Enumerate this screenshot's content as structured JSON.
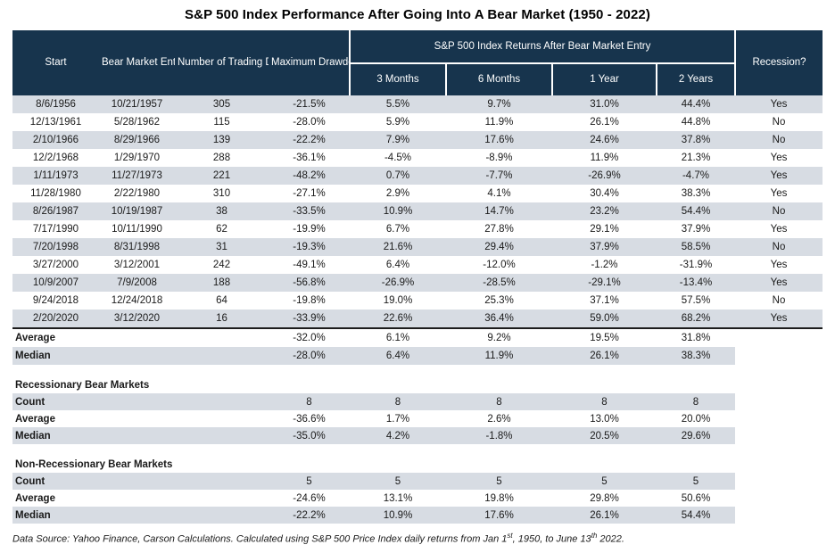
{
  "title": "S&P 500 Index Performance After Going Into A Bear Market (1950 - 2022)",
  "colors": {
    "header_bg": "#17344d",
    "header_text": "#ffffff",
    "row_shade": "#d7dce3",
    "body_text": "#1a1a1a"
  },
  "chart_data": {
    "type": "table",
    "title": "S&P 500 Index Performance After Going Into A Bear Market (1950 - 2022)",
    "headers": {
      "start": "Start",
      "entry": "Bear Market Entry",
      "days": "Number of Trading Days to Enter Bear Market",
      "drawdown": "Maximum Drawdown",
      "returns_group": "S&P 500 Index Returns After Bear Market Entry",
      "sub": [
        "3 Months",
        "6 Months",
        "1 Year",
        "2 Years"
      ],
      "recession": "Recession?"
    },
    "rows": [
      [
        "8/6/1956",
        "10/21/1957",
        "305",
        "-21.5%",
        "5.5%",
        "9.7%",
        "31.0%",
        "44.4%",
        "Yes"
      ],
      [
        "12/13/1961",
        "5/28/1962",
        "115",
        "-28.0%",
        "5.9%",
        "11.9%",
        "26.1%",
        "44.8%",
        "No"
      ],
      [
        "2/10/1966",
        "8/29/1966",
        "139",
        "-22.2%",
        "7.9%",
        "17.6%",
        "24.6%",
        "37.8%",
        "No"
      ],
      [
        "12/2/1968",
        "1/29/1970",
        "288",
        "-36.1%",
        "-4.5%",
        "-8.9%",
        "11.9%",
        "21.3%",
        "Yes"
      ],
      [
        "1/11/1973",
        "11/27/1973",
        "221",
        "-48.2%",
        "0.7%",
        "-7.7%",
        "-26.9%",
        "-4.7%",
        "Yes"
      ],
      [
        "11/28/1980",
        "2/22/1980",
        "310",
        "-27.1%",
        "2.9%",
        "4.1%",
        "30.4%",
        "38.3%",
        "Yes"
      ],
      [
        "8/26/1987",
        "10/19/1987",
        "38",
        "-33.5%",
        "10.9%",
        "14.7%",
        "23.2%",
        "54.4%",
        "No"
      ],
      [
        "7/17/1990",
        "10/11/1990",
        "62",
        "-19.9%",
        "6.7%",
        "27.8%",
        "29.1%",
        "37.9%",
        "Yes"
      ],
      [
        "7/20/1998",
        "8/31/1998",
        "31",
        "-19.3%",
        "21.6%",
        "29.4%",
        "37.9%",
        "58.5%",
        "No"
      ],
      [
        "3/27/2000",
        "3/12/2001",
        "242",
        "-49.1%",
        "6.4%",
        "-12.0%",
        "-1.2%",
        "-31.9%",
        "Yes"
      ],
      [
        "10/9/2007",
        "7/9/2008",
        "188",
        "-56.8%",
        "-26.9%",
        "-28.5%",
        "-29.1%",
        "-13.4%",
        "Yes"
      ],
      [
        "9/24/2018",
        "12/24/2018",
        "64",
        "-19.8%",
        "19.0%",
        "25.3%",
        "37.1%",
        "57.5%",
        "No"
      ],
      [
        "2/20/2020",
        "3/12/2020",
        "16",
        "-33.9%",
        "22.6%",
        "36.4%",
        "59.0%",
        "68.2%",
        "Yes"
      ]
    ],
    "summary": [
      {
        "label": "Average",
        "values": [
          "-32.0%",
          "6.1%",
          "9.2%",
          "19.5%",
          "31.8%"
        ]
      },
      {
        "label": "Median",
        "values": [
          "-28.0%",
          "6.4%",
          "11.9%",
          "26.1%",
          "38.3%"
        ]
      }
    ],
    "sections": [
      {
        "title": "Recessionary Bear Markets",
        "rows": [
          {
            "label": "Count",
            "values": [
              "8",
              "8",
              "8",
              "8",
              "8"
            ]
          },
          {
            "label": "Average",
            "values": [
              "-36.6%",
              "1.7%",
              "2.6%",
              "13.0%",
              "20.0%"
            ]
          },
          {
            "label": "Median",
            "values": [
              "-35.0%",
              "4.2%",
              "-1.8%",
              "20.5%",
              "29.6%"
            ]
          }
        ]
      },
      {
        "title": "Non-Recessionary Bear Markets",
        "rows": [
          {
            "label": "Count",
            "values": [
              "5",
              "5",
              "5",
              "5",
              "5"
            ]
          },
          {
            "label": "Average",
            "values": [
              "-24.6%",
              "13.1%",
              "19.8%",
              "29.8%",
              "50.6%"
            ]
          },
          {
            "label": "Median",
            "values": [
              "-22.2%",
              "10.9%",
              "17.6%",
              "26.1%",
              "54.4%"
            ]
          }
        ]
      }
    ]
  },
  "footer": {
    "prefix": "Data Source: Yahoo Finance, Carson Calculations. Calculated using S&P 500 Price Index daily returns from Jan 1",
    "sup1": "st",
    "mid": ", 1950, to June 13",
    "sup2": "th",
    "suffix": " 2022."
  }
}
